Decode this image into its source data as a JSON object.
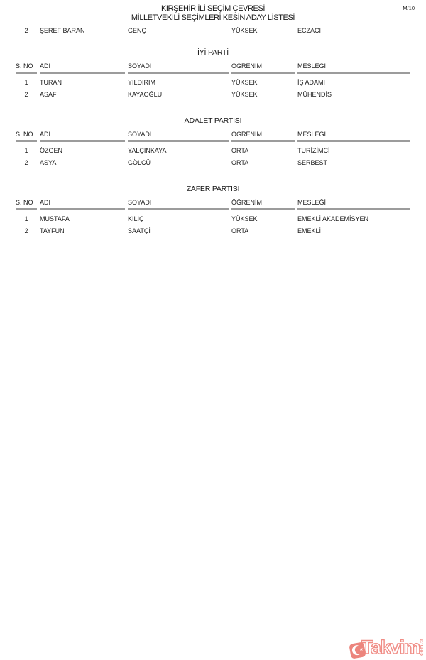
{
  "page": {
    "code": "M/10"
  },
  "header": {
    "title_line1": "KIRŞEHİR İLİ SEÇİM ÇEVRESİ",
    "title_line2": "MİLLETVEKİLİ SEÇİMLERİ KESİN ADAY LİSTESİ"
  },
  "columns": [
    "S. NO",
    "ADI",
    "SOYADI",
    "ÖĞRENİM",
    "MESLEĞİ"
  ],
  "carryover_row": [
    "2",
    "ŞEREF BARAN",
    "GENÇ",
    "YÜKSEK",
    "ECZACI"
  ],
  "sections": [
    {
      "party": "İYİ PARTİ",
      "rows": [
        [
          "1",
          "TURAN",
          "YILDIRIM",
          "YÜKSEK",
          "İŞ ADAMI"
        ],
        [
          "2",
          "ASAF",
          "KAYAOĞLU",
          "YÜKSEK",
          "MÜHENDİS"
        ]
      ]
    },
    {
      "party": "ADALET PARTİSİ",
      "rows": [
        [
          "1",
          "ÖZGEN",
          "YALÇINKAYA",
          "ORTA",
          "TURİZİMCİ"
        ],
        [
          "2",
          "ASYA",
          "GÖLCÜ",
          "ORTA",
          "SERBEST"
        ]
      ]
    },
    {
      "party": "ZAFER PARTİSİ",
      "rows": [
        [
          "1",
          "MUSTAFA",
          "KILIÇ",
          "YÜKSEK",
          "EMEKLİ AKADEMİSYEN"
        ],
        [
          "2",
          "TAYFUN",
          "SAATÇİ",
          "ORTA",
          "EMEKLİ"
        ]
      ]
    }
  ],
  "watermark": {
    "brand": "Takvim",
    "domain_suffix": "com.tr",
    "star": "★",
    "red": "#e23b2e"
  }
}
